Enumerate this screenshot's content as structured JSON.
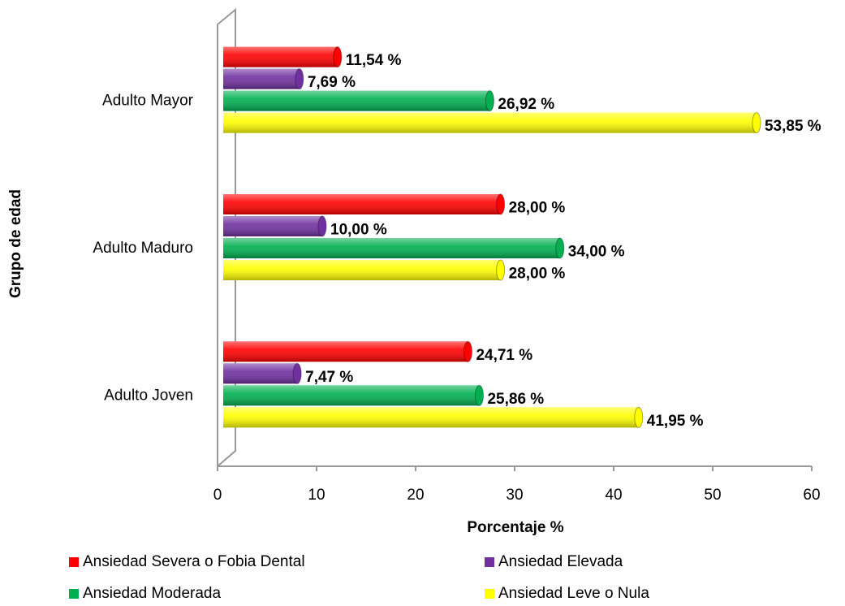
{
  "chart_data": {
    "type": "bar",
    "orientation": "horizontal",
    "categories": [
      "Adulto Joven",
      "Adulto Maduro",
      "Adulto Mayor"
    ],
    "series": [
      {
        "name": "Ansiedad Severa o Fobia Dental",
        "color": "#ff0000",
        "values": [
          24.71,
          28.0,
          11.54
        ],
        "value_labels": [
          "24,71 %",
          "28,00 %",
          "11,54 %"
        ]
      },
      {
        "name": "Ansiedad Elevada",
        "color": "#7030a0",
        "values": [
          7.47,
          10.0,
          7.69
        ],
        "value_labels": [
          "7,47 %",
          "10,00 %",
          "7,69 %"
        ]
      },
      {
        "name": "Ansiedad Moderada",
        "color": "#00b050",
        "values": [
          25.86,
          34.0,
          26.92
        ],
        "value_labels": [
          "25,86 %",
          "34,00 %",
          "26,92 %"
        ]
      },
      {
        "name": "Ansiedad Leve o Nula",
        "color": "#ffff00",
        "values": [
          41.95,
          28.0,
          53.85
        ],
        "value_labels": [
          "41,95 %",
          "28,00 %",
          "53,85 %"
        ]
      }
    ],
    "x_label": "Porcentaje %",
    "y_label": "Grupo de edad",
    "xlim": [
      0,
      60
    ],
    "xticks": [
      0,
      10,
      20,
      30,
      40,
      50,
      60
    ],
    "legend": "bottom"
  }
}
